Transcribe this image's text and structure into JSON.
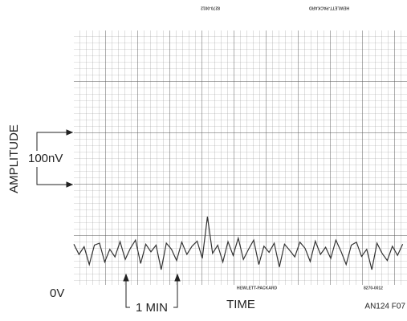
{
  "chart_data": {
    "type": "line",
    "annotations": {
      "y_label": "AMPLITUDE",
      "scale": "100nV",
      "zero": "0V",
      "x_label": "TIME",
      "time_scale": "1 MIN",
      "figure_id": "AN124 F07",
      "paper_top_left": "8270-0012",
      "paper_top_right": "HEWLETT-PACKARD",
      "paper_bottom_left": "HEWLETT-PACKARD",
      "paper_bottom_right": "8270-0012"
    },
    "xlim": [
      0,
      6.5
    ],
    "ylim": [
      0,
      500
    ],
    "x": [
      0,
      0.1,
      0.2,
      0.3,
      0.4,
      0.5,
      0.6,
      0.7,
      0.8,
      0.9,
      1,
      1.1,
      1.2,
      1.3,
      1.4,
      1.5,
      1.6,
      1.7,
      1.8,
      1.9,
      2,
      2.1,
      2.2,
      2.3,
      2.4,
      2.5,
      2.6,
      2.7,
      2.8,
      2.9,
      3,
      3.1,
      3.2,
      3.3,
      3.4,
      3.5,
      3.6,
      3.7,
      3.8,
      3.9,
      4,
      4.1,
      4.2,
      4.3,
      4.4,
      4.5,
      4.6,
      4.7,
      4.8,
      4.9,
      5,
      5.1,
      5.2,
      5.3,
      5.4,
      5.5,
      5.6,
      5.7,
      5.8,
      5.9,
      6,
      6.1,
      6.2,
      6.3,
      6.4
    ],
    "series": [
      {
        "color": "#333333",
        "values": [
          80,
          60,
          75,
          40,
          78,
          82,
          45,
          70,
          55,
          85,
          50,
          72,
          88,
          42,
          80,
          65,
          78,
          30,
          82,
          70,
          48,
          84,
          60,
          76,
          86,
          52,
          134,
          62,
          78,
          45,
          85,
          58,
          92,
          50,
          70,
          88,
          40,
          76,
          64,
          82,
          35,
          80,
          68,
          55,
          84,
          72,
          46,
          86,
          60,
          74,
          52,
          88,
          66,
          40,
          78,
          84,
          56,
          70,
          30,
          82,
          62,
          48,
          76,
          58,
          80
        ]
      }
    ]
  }
}
